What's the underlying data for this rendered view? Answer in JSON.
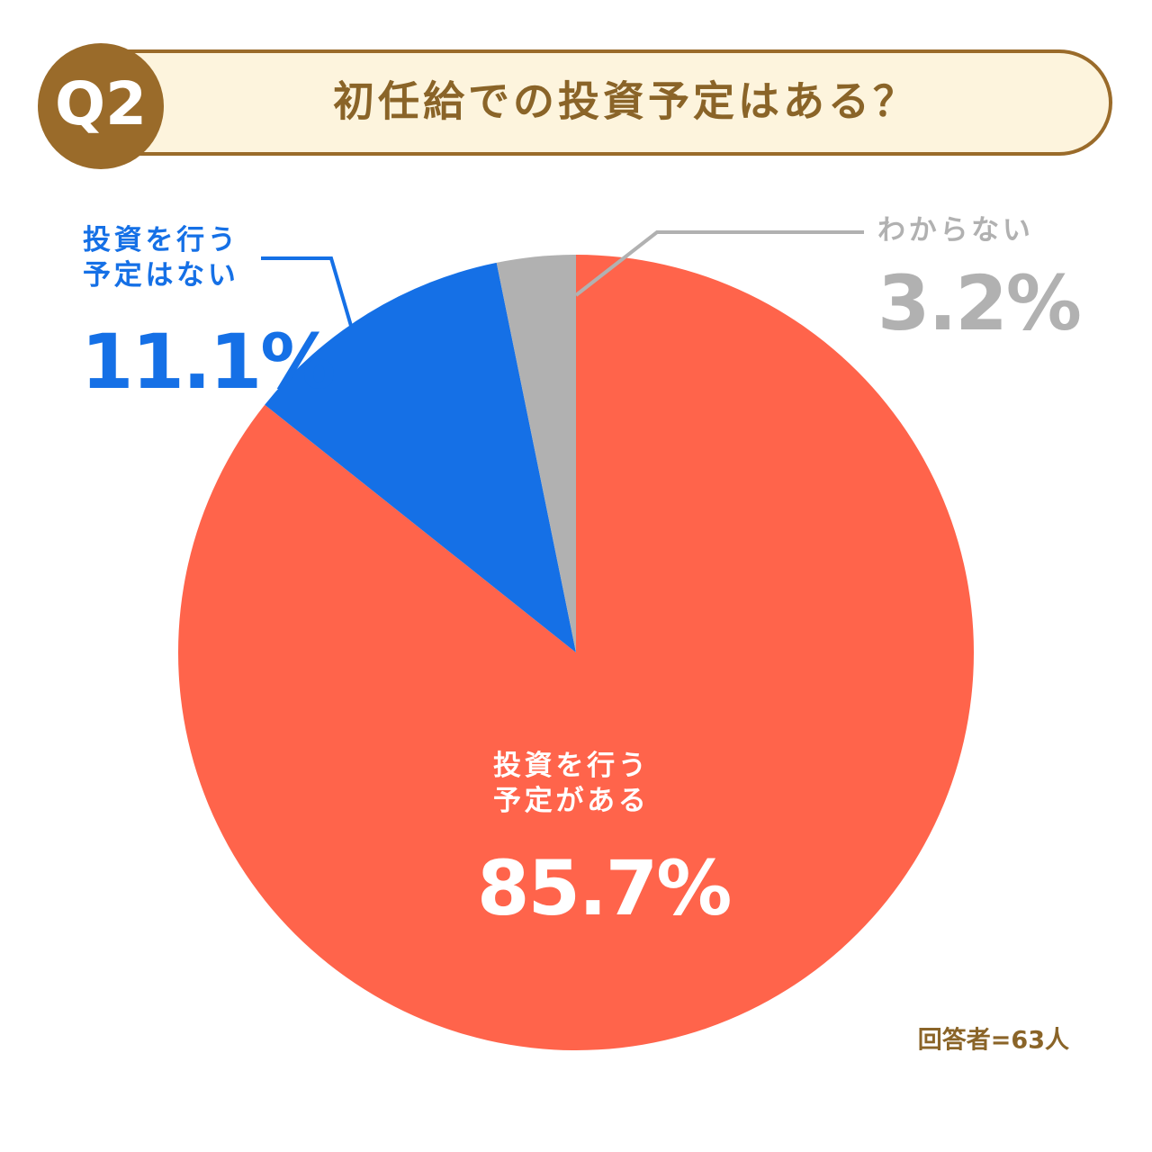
{
  "badge": "Q2",
  "chart_data": {
    "type": "pie",
    "title": "初任給での投資予定はある？",
    "categories": [
      "投資を行う予定がある",
      "投資を行う予定はない",
      "わからない"
    ],
    "values": [
      85.7,
      11.1,
      3.2
    ],
    "value_labels": [
      "85.7%",
      "11.1%",
      "3.2%"
    ],
    "colors": [
      "#ff644b",
      "#1570e6",
      "#b1b1b1"
    ],
    "note": "回答者=63人"
  }
}
